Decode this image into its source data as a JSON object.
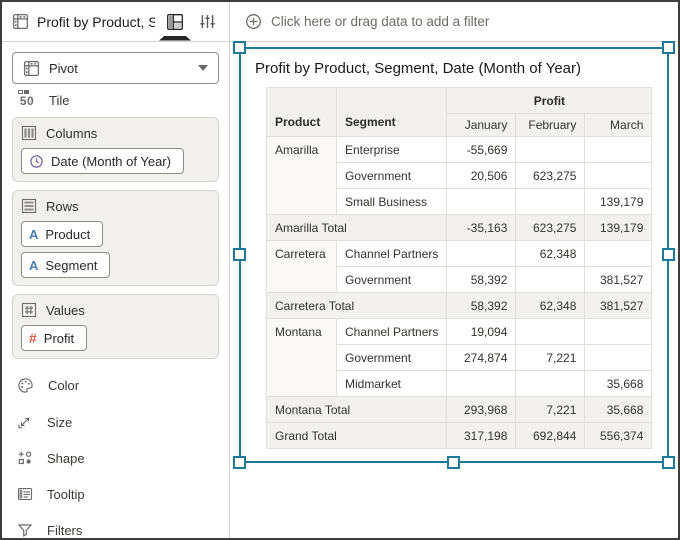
{
  "topbar": {
    "title": "Profit by Product, S...",
    "filter_prompt": "Click here or drag data to add a filter"
  },
  "sidebar": {
    "viz_type_label": "Pivot",
    "tile_label": "Tile",
    "tile_glyph": "50",
    "columns_section": {
      "label": "Columns",
      "pills": [
        {
          "label": "Date (Month of Year)",
          "icon": "clock-icon"
        }
      ]
    },
    "rows_section": {
      "label": "Rows",
      "pills": [
        {
          "label": "Product",
          "glyph": "A"
        },
        {
          "label": "Segment",
          "glyph": "A"
        }
      ]
    },
    "values_section": {
      "label": "Values",
      "pills": [
        {
          "label": "Profit",
          "glyph": "#"
        }
      ]
    },
    "tools": [
      {
        "label": "Color"
      },
      {
        "label": "Size"
      },
      {
        "label": "Shape"
      },
      {
        "label": "Tooltip"
      },
      {
        "label": "Filters"
      }
    ]
  },
  "viz": {
    "title": "Profit by Product, Segment, Date (Month of Year)",
    "measure_header": "Profit",
    "row_headers": [
      "Product",
      "Segment"
    ],
    "column_headers": [
      "January",
      "February",
      "March"
    ],
    "rows": [
      {
        "product": "Amarilla",
        "rowspan": 3,
        "segment": "Enterprise",
        "values": [
          "-55,669",
          "",
          ""
        ]
      },
      {
        "segment": "Government",
        "values": [
          "20,506",
          "623,275",
          ""
        ]
      },
      {
        "segment": "Small Business",
        "values": [
          "",
          "",
          "139,179"
        ]
      },
      {
        "total_label": "Amarilla Total",
        "values": [
          "-35,163",
          "623,275",
          "139,179"
        ]
      },
      {
        "product": "Carretera",
        "rowspan": 2,
        "segment": "Channel Partners",
        "values": [
          "",
          "62,348",
          ""
        ]
      },
      {
        "segment": "Government",
        "values": [
          "58,392",
          "",
          "381,527"
        ]
      },
      {
        "total_label": "Carretera Total",
        "values": [
          "58,392",
          "62,348",
          "381,527"
        ]
      },
      {
        "product": "Montana",
        "rowspan": 3,
        "segment": "Channel Partners",
        "values": [
          "19,094",
          "",
          ""
        ]
      },
      {
        "segment": "Government",
        "values": [
          "274,874",
          "7,221",
          ""
        ]
      },
      {
        "segment": "Midmarket",
        "values": [
          "",
          "",
          "35,668"
        ]
      },
      {
        "total_label": "Montana Total",
        "values": [
          "293,968",
          "7,221",
          "35,668"
        ]
      },
      {
        "total_label": "Grand Total",
        "values": [
          "317,198",
          "692,844",
          "556,374"
        ]
      }
    ]
  },
  "colors": {
    "selection_teal": "#1d7a9c",
    "attribute_blue": "#4a7eba",
    "measure_red": "#e0584e",
    "time_purple": "#7e6ba8",
    "panel_gray": "#f1f0ee",
    "header_gray": "#f2f1ef"
  }
}
